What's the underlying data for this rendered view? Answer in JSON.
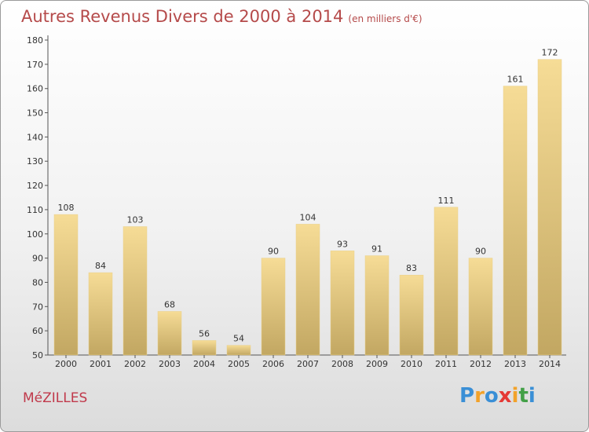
{
  "header": {
    "title": "Autres Revenus Divers de 2000 à 2014",
    "unit": "(en milliers d'€)"
  },
  "footer": {
    "commune": "MéZILLES",
    "logo_letters": [
      "P",
      "r",
      "o",
      "x",
      "i",
      "t",
      "i"
    ],
    "logo_colors": [
      "#3a8fd6",
      "#f2a22a",
      "#3a8fd6",
      "#e53935",
      "#f2a22a",
      "#43a047",
      "#3a8fd6"
    ]
  },
  "colors": {
    "title": "#b54a4a",
    "bar_light": "#f6dc96",
    "bar_dark": "#c2a762",
    "commune": "#c0394b"
  },
  "chart_data": {
    "type": "bar",
    "title": "Autres Revenus Divers de 2000 à 2014",
    "subtitle": "(en milliers d'€)",
    "xlabel": "",
    "ylabel": "",
    "categories": [
      "2000",
      "2001",
      "2002",
      "2003",
      "2004",
      "2005",
      "2006",
      "2007",
      "2008",
      "2009",
      "2010",
      "2011",
      "2012",
      "2013",
      "2014"
    ],
    "values": [
      108,
      84,
      103,
      68,
      56,
      54,
      90,
      104,
      93,
      91,
      83,
      111,
      90,
      161,
      172
    ],
    "ylim": [
      50,
      180
    ],
    "yticks": [
      50,
      60,
      70,
      80,
      90,
      100,
      110,
      120,
      130,
      140,
      150,
      160,
      170,
      180
    ],
    "grid": false,
    "legend": "none"
  }
}
